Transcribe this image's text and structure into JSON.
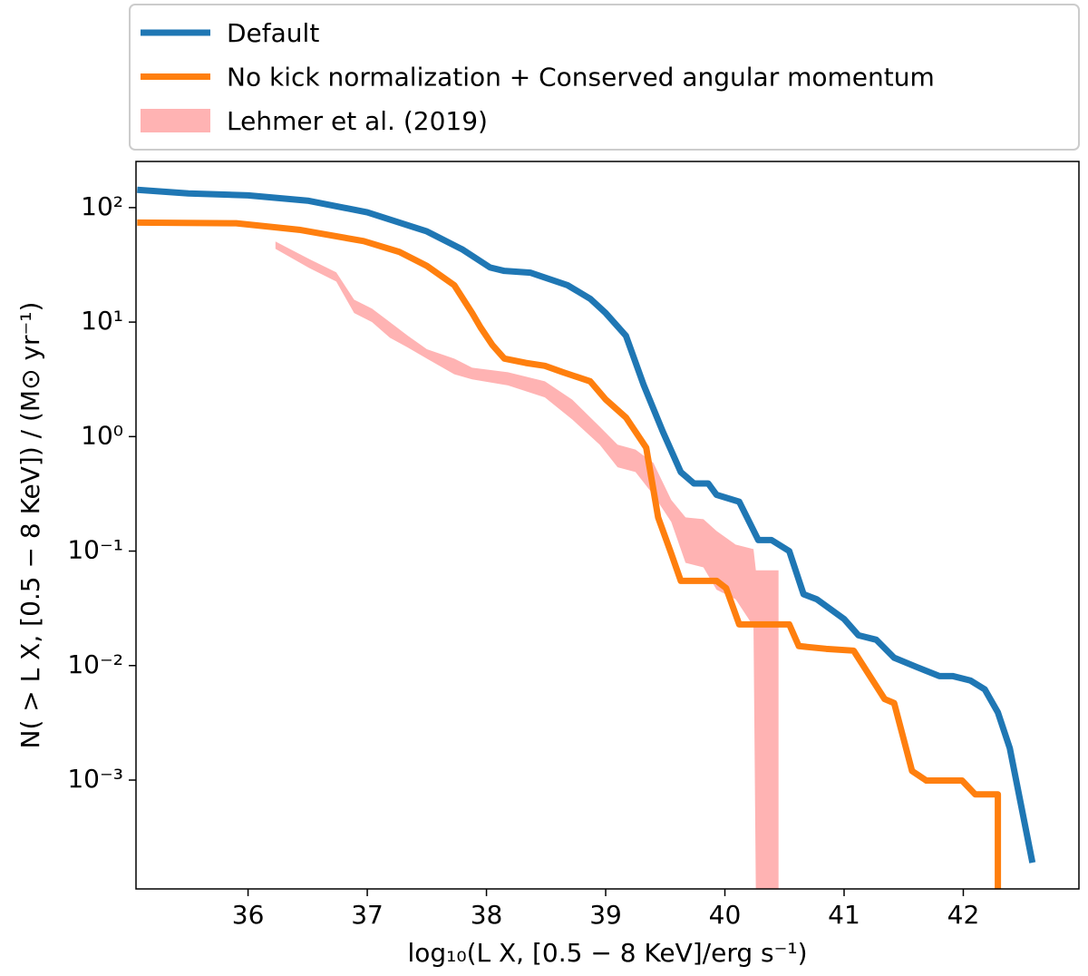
{
  "chart_data": {
    "type": "line",
    "xlabel": "log₁₀(L X, [0.5 − 8 KeV]/erg s⁻¹)",
    "ylabel": "N( > L X, [0.5 − 8 KeV]) / (M⊙ yr⁻¹)",
    "log_y": true,
    "xlim": [
      35.06,
      42.97
    ],
    "ylim": [
      0.000112,
      253
    ],
    "xticks": [
      36,
      37,
      38,
      39,
      40,
      41,
      42
    ],
    "yticks": [
      {
        "value": 0.001,
        "label": "10⁻³"
      },
      {
        "value": 0.01,
        "label": "10⁻²"
      },
      {
        "value": 0.1,
        "label": "10⁻¹"
      },
      {
        "value": 1,
        "label": "10⁰"
      },
      {
        "value": 10,
        "label": "10¹"
      },
      {
        "value": 100,
        "label": "10²"
      }
    ],
    "legend": "top",
    "series": [
      {
        "name": "Default",
        "color": "#1f77b4",
        "x": [
          35.07,
          35.5,
          36.0,
          36.5,
          37.0,
          37.5,
          37.8,
          38.03,
          38.15,
          38.37,
          38.68,
          38.87,
          39.0,
          39.17,
          39.32,
          39.48,
          39.63,
          39.74,
          39.86,
          39.93,
          40.12,
          40.28,
          40.39,
          40.54,
          40.66,
          40.77,
          41.0,
          41.12,
          41.27,
          41.42,
          41.61,
          41.8,
          41.91,
          42.06,
          42.18,
          42.29,
          42.39,
          42.58
        ],
        "values": [
          143,
          133,
          128,
          115,
          91,
          62,
          43,
          30,
          28,
          27,
          21,
          16,
          12,
          7.6,
          2.8,
          1.1,
          0.49,
          0.39,
          0.39,
          0.31,
          0.27,
          0.125,
          0.125,
          0.1,
          0.042,
          0.038,
          0.0255,
          0.0184,
          0.0168,
          0.0117,
          0.0097,
          0.0081,
          0.0081,
          0.0074,
          0.0062,
          0.0039,
          0.0019,
          0.00019
        ]
      },
      {
        "name": "No kick normalization + Conserved angular momentum",
        "color": "#ff7f0e",
        "x": [
          35.07,
          35.9,
          36.43,
          36.97,
          37.27,
          37.5,
          37.73,
          37.88,
          37.95,
          38.05,
          38.15,
          38.33,
          38.49,
          38.64,
          38.87,
          39.0,
          39.17,
          39.34,
          39.44,
          39.55,
          39.63,
          39.93,
          40.01,
          40.12,
          40.54,
          40.62,
          40.85,
          41.08,
          41.23,
          41.34,
          41.42,
          41.57,
          41.69,
          41.99,
          42.1,
          42.29,
          42.29
        ],
        "values": [
          74,
          73,
          64,
          51,
          41,
          31,
          21,
          12,
          9,
          6.3,
          4.8,
          4.4,
          4.15,
          3.65,
          3.04,
          2.11,
          1.47,
          0.8,
          0.197,
          0.095,
          0.055,
          0.055,
          0.0475,
          0.0229,
          0.0229,
          0.0148,
          0.014,
          0.0135,
          0.0077,
          0.0051,
          0.0047,
          0.0012,
          0.00099,
          0.00099,
          0.00075,
          0.00075,
          0.0001
        ]
      }
    ],
    "bands": [
      {
        "name": "Lehmer et al. (2019)",
        "color": "#ffb3b3",
        "x": [
          36.23,
          36.51,
          36.74,
          36.89,
          37.04,
          37.19,
          37.34,
          37.5,
          37.73,
          37.88,
          38.18,
          38.49,
          38.72,
          38.95,
          39.1,
          39.25,
          39.4,
          39.55,
          39.67,
          39.82,
          39.93,
          40.09,
          40.24,
          40.26,
          40.45
        ],
        "upper": [
          50.6,
          35.7,
          27.2,
          15.7,
          13.1,
          10,
          7.6,
          5.8,
          4.8,
          4.0,
          3.65,
          3.04,
          2.1,
          1.22,
          0.85,
          0.77,
          0.59,
          0.28,
          0.197,
          0.19,
          0.15,
          0.114,
          0.104,
          0.068,
          0.068
        ],
        "lower": [
          43.6,
          29.8,
          22.6,
          12,
          10,
          7.3,
          6,
          4.8,
          3.5,
          3.16,
          2.8,
          2.2,
          1.41,
          0.85,
          0.54,
          0.49,
          0.31,
          0.18,
          0.079,
          0.072,
          0.046,
          0.038,
          0.022,
          0.0001,
          0.0001
        ]
      }
    ]
  }
}
